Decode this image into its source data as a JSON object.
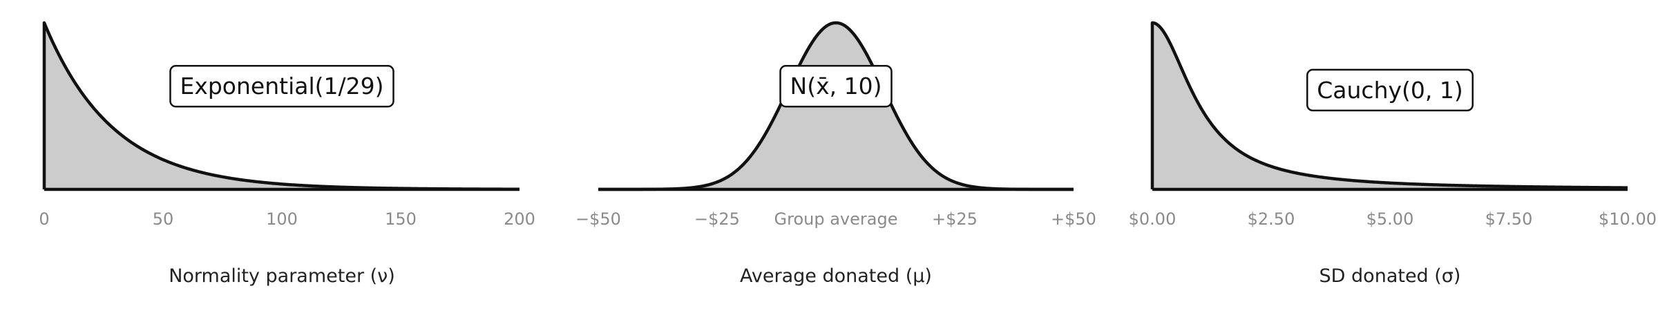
{
  "colors": {
    "fill": "#cccccc",
    "line": "#111111",
    "tick": "#8a8a8a"
  },
  "chart_data": [
    {
      "type": "area",
      "distribution": "exponential",
      "params": {
        "rate": 0.03448
      },
      "label": "Exponential(1/29)",
      "xlim": [
        0,
        200
      ],
      "x_ticks": [
        {
          "value": 0,
          "label": "0"
        },
        {
          "value": 50,
          "label": "50"
        },
        {
          "value": 100,
          "label": "100"
        },
        {
          "value": 150,
          "label": "150"
        },
        {
          "value": 200,
          "label": "200"
        }
      ],
      "xlabel": "Normality parameter (ν)",
      "label_at": {
        "x": 100,
        "y_frac": 0.26
      }
    },
    {
      "type": "area",
      "distribution": "normal",
      "params": {
        "mean": 0,
        "sd": 10
      },
      "label": "N(x̄, 10)",
      "xlim": [
        -50,
        50
      ],
      "x_ticks": [
        {
          "value": -50,
          "label": "−$50"
        },
        {
          "value": -25,
          "label": "−$25"
        },
        {
          "value": 0,
          "label": "Group average"
        },
        {
          "value": 25,
          "label": "+$25"
        },
        {
          "value": 50,
          "label": "+$50"
        }
      ],
      "xlabel": "Average donated (μ)",
      "label_at": {
        "x": 0,
        "y_frac": 0.26
      }
    },
    {
      "type": "area",
      "distribution": "half-cauchy",
      "params": {
        "location": 0,
        "scale": 1
      },
      "label": "Cauchy(0, 1)",
      "xlim": [
        0,
        10
      ],
      "x_ticks": [
        {
          "value": 0,
          "label": "$0.00"
        },
        {
          "value": 2.5,
          "label": "$2.50"
        },
        {
          "value": 5,
          "label": "$5.00"
        },
        {
          "value": 7.5,
          "label": "$7.50"
        },
        {
          "value": 10,
          "label": "$10.00"
        }
      ],
      "xlabel": "SD donated (σ)",
      "label_at": {
        "x": 5,
        "y_frac": 0.25
      }
    }
  ]
}
